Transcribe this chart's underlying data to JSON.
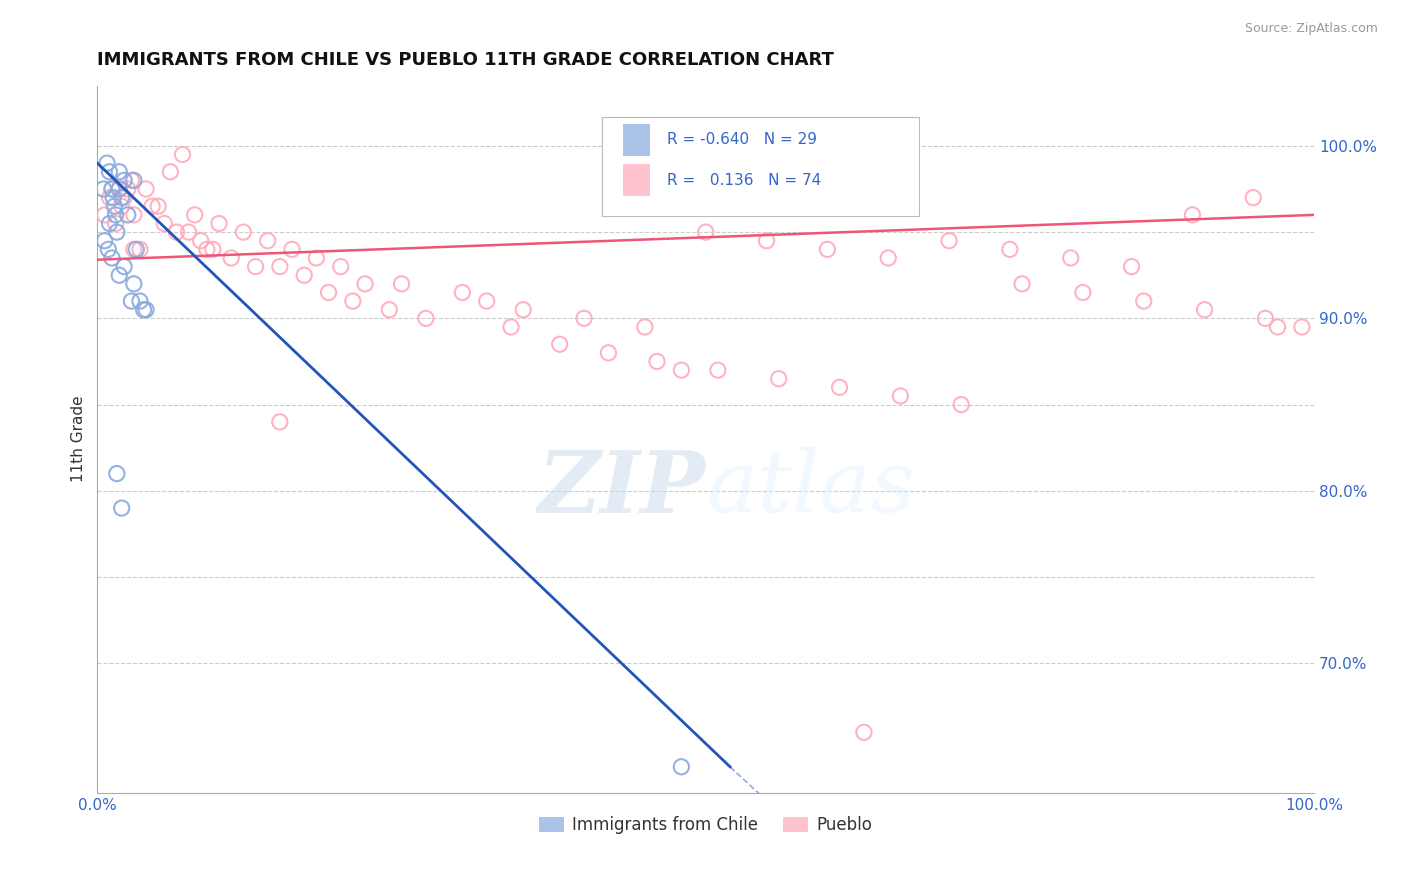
{
  "title": "IMMIGRANTS FROM CHILE VS PUEBLO 11TH GRADE CORRELATION CHART",
  "source_text": "Source: ZipAtlas.com",
  "ylabel": "11th Grade",
  "watermark_zip": "ZIP",
  "watermark_atlas": "atlas",
  "xlim": [
    0.0,
    1.0
  ],
  "ylim": [
    0.625,
    1.035
  ],
  "ytick_positions": [
    0.7,
    0.8,
    0.9,
    1.0
  ],
  "ytick_labels": [
    "70.0%",
    "80.0%",
    "90.0%",
    "100.0%"
  ],
  "grid_y": [
    0.7,
    0.75,
    0.8,
    0.85,
    0.9,
    0.95,
    1.0
  ],
  "legend_r_blue": "-0.640",
  "legend_n_blue": "29",
  "legend_r_pink": "0.136",
  "legend_n_pink": "74",
  "legend_label_blue": "Immigrants from Chile",
  "legend_label_pink": "Pueblo",
  "blue_color": "#88AADD",
  "pink_color": "#FFAABB",
  "trend_blue_color": "#2255BB",
  "trend_pink_color": "#EE5577",
  "blue_scatter_x": [
    0.005,
    0.008,
    0.01,
    0.01,
    0.012,
    0.012,
    0.013,
    0.014,
    0.015,
    0.016,
    0.018,
    0.018,
    0.018,
    0.02,
    0.02,
    0.022,
    0.022,
    0.025,
    0.028,
    0.03,
    0.03,
    0.032,
    0.035,
    0.038,
    0.04,
    0.006,
    0.009,
    0.48,
    0.016
  ],
  "blue_scatter_y": [
    0.975,
    0.99,
    0.985,
    0.955,
    0.975,
    0.935,
    0.97,
    0.965,
    0.96,
    0.95,
    0.985,
    0.975,
    0.925,
    0.97,
    0.79,
    0.98,
    0.93,
    0.96,
    0.91,
    0.98,
    0.92,
    0.94,
    0.91,
    0.905,
    0.905,
    0.945,
    0.94,
    0.64,
    0.81
  ],
  "pink_scatter_x": [
    0.006,
    0.01,
    0.012,
    0.015,
    0.018,
    0.02,
    0.022,
    0.025,
    0.028,
    0.03,
    0.03,
    0.035,
    0.04,
    0.045,
    0.05,
    0.055,
    0.06,
    0.065,
    0.07,
    0.075,
    0.08,
    0.085,
    0.09,
    0.095,
    0.1,
    0.11,
    0.12,
    0.13,
    0.14,
    0.15,
    0.16,
    0.17,
    0.18,
    0.19,
    0.2,
    0.21,
    0.22,
    0.24,
    0.25,
    0.27,
    0.3,
    0.32,
    0.34,
    0.35,
    0.38,
    0.4,
    0.42,
    0.45,
    0.46,
    0.48,
    0.5,
    0.51,
    0.55,
    0.56,
    0.6,
    0.61,
    0.63,
    0.65,
    0.66,
    0.7,
    0.71,
    0.75,
    0.76,
    0.8,
    0.81,
    0.85,
    0.86,
    0.9,
    0.91,
    0.95,
    0.96,
    0.97,
    0.99,
    0.15
  ],
  "pink_scatter_y": [
    0.96,
    0.97,
    0.975,
    0.955,
    0.975,
    0.965,
    0.97,
    0.975,
    0.98,
    0.94,
    0.96,
    0.94,
    0.975,
    0.965,
    0.965,
    0.955,
    0.985,
    0.95,
    0.995,
    0.95,
    0.96,
    0.945,
    0.94,
    0.94,
    0.955,
    0.935,
    0.95,
    0.93,
    0.945,
    0.93,
    0.94,
    0.925,
    0.935,
    0.915,
    0.93,
    0.91,
    0.92,
    0.905,
    0.92,
    0.9,
    0.915,
    0.91,
    0.895,
    0.905,
    0.885,
    0.9,
    0.88,
    0.895,
    0.875,
    0.87,
    0.95,
    0.87,
    0.945,
    0.865,
    0.94,
    0.86,
    0.66,
    0.935,
    0.855,
    0.945,
    0.85,
    0.94,
    0.92,
    0.935,
    0.915,
    0.93,
    0.91,
    0.96,
    0.905,
    0.97,
    0.9,
    0.895,
    0.895,
    0.84
  ],
  "blue_trend_x": [
    0.0,
    0.52
  ],
  "blue_trend_y": [
    0.99,
    0.64
  ],
  "pink_trend_x": [
    0.0,
    1.0
  ],
  "pink_trend_y": [
    0.934,
    0.96
  ],
  "bg_color": "#FFFFFF"
}
